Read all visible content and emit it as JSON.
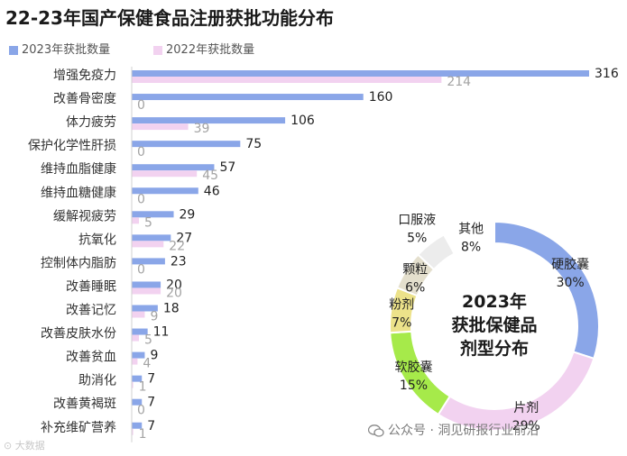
{
  "chart_data": [
    {
      "type": "bar",
      "orientation": "horizontal",
      "title": "22-23年国产保健食品注册获批功能分布",
      "categories": [
        "增强免疫力",
        "改善骨密度",
        "体力疲劳",
        "保护化学性肝损",
        "维持血脂健康",
        "维持血糖健康",
        "缓解视疲劳",
        "抗氧化",
        "控制体内脂肪",
        "改善睡眠",
        "改善记忆",
        "改善皮肤水份",
        "改善贫血",
        "助消化",
        "改善黄褐斑",
        "补充维矿营养"
      ],
      "series": [
        {
          "name": "2023年获批数量",
          "color": "#8aa6e8",
          "values": [
            316,
            160,
            106,
            75,
            57,
            46,
            29,
            27,
            23,
            20,
            18,
            11,
            9,
            7,
            7,
            7
          ]
        },
        {
          "name": "2022年获批数量",
          "color": "#f2d2f0",
          "values": [
            214,
            0,
            39,
            0,
            45,
            0,
            5,
            22,
            0,
            20,
            9,
            5,
            4,
            1,
            0,
            1
          ]
        }
      ],
      "legend_position": "top-left",
      "grid": false
    },
    {
      "type": "pie",
      "variant": "donut",
      "title_lines": [
        "2023年",
        "获批保健品",
        "剂型分布"
      ],
      "slices": [
        {
          "label": "硬胶囊",
          "value": 30,
          "value_label": "30%",
          "color": "#8aa6e8"
        },
        {
          "label": "片剂",
          "value": 29,
          "value_label": "29%",
          "color": "#f2d2f0"
        },
        {
          "label": "软胶囊",
          "value": 15,
          "value_label": "15%",
          "color": "#a6ea4a"
        },
        {
          "label": "粉剂",
          "value": 7,
          "value_label": "7%",
          "color": "#ece28a"
        },
        {
          "label": "颗粒",
          "value": 6,
          "value_label": "6%",
          "color": "#e4dfcd"
        },
        {
          "label": "口服液",
          "value": 5,
          "value_label": "5%",
          "color": "#ececec"
        },
        {
          "label": "其他",
          "value": 8,
          "value_label": "8%",
          "color": "#ffffff"
        }
      ]
    }
  ],
  "watermark": "公众号 · 洞见研报行业前沿",
  "bottom_mark": "⊙ 大数据"
}
